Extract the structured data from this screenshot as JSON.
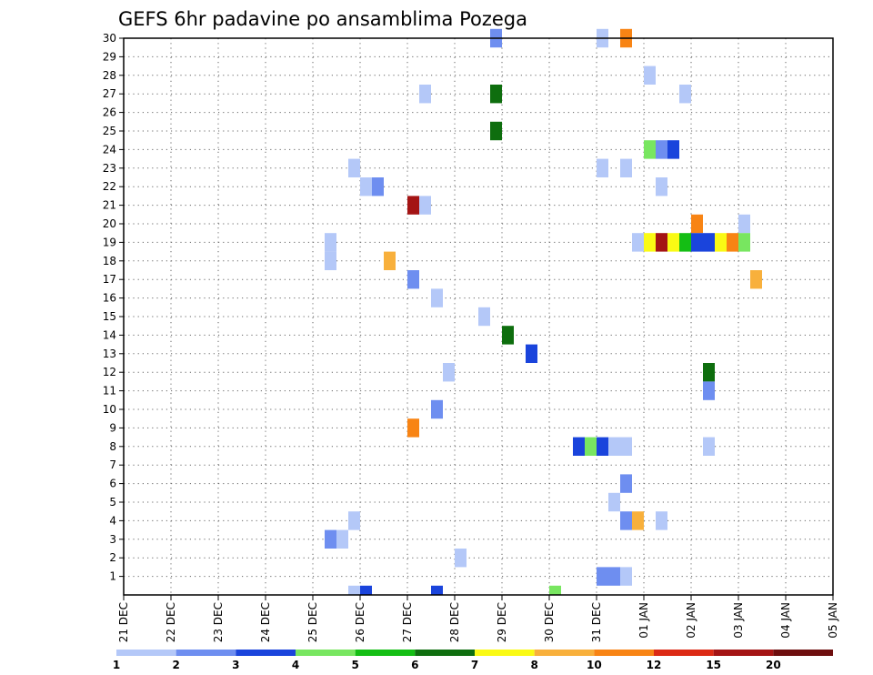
{
  "chart_data": {
    "type": "heatmap",
    "title": "GEFS 6hr padavine po ansamblima Pozega",
    "x_labels": [
      "21 DEC",
      "22 DEC",
      "23 DEC",
      "24 DEC",
      "25 DEC",
      "26 DEC",
      "27 DEC",
      "28 DEC",
      "29 DEC",
      "30 DEC",
      "31 DEC",
      "01 JAN",
      "02 JAN",
      "03 JAN",
      "04 JAN",
      "05 JAN"
    ],
    "y_labels": [
      "1",
      "2",
      "3",
      "4",
      "5",
      "6",
      "7",
      "8",
      "9",
      "10",
      "11",
      "12",
      "13",
      "14",
      "15",
      "16",
      "17",
      "18",
      "19",
      "20",
      "21",
      "22",
      "23",
      "24",
      "25",
      "26",
      "27",
      "28",
      "29",
      "30"
    ],
    "xlim": [
      0,
      60
    ],
    "ylim": [
      0,
      30
    ],
    "grid": true,
    "color_scale": {
      "labels": [
        "1",
        "2",
        "3",
        "4",
        "5",
        "6",
        "7",
        "8",
        "10",
        "12",
        "15",
        "20"
      ],
      "colors": [
        "#b4c8f8",
        "#6e8ef0",
        "#1a44dc",
        "#78e660",
        "#14be14",
        "#0e6e0e",
        "#fafa14",
        "#f8b03c",
        "#f88414",
        "#dc2a14",
        "#a41414",
        "#6e0e0e"
      ]
    },
    "cells": [
      {
        "x": 3.5,
        "y": 30,
        "v": 2
      },
      {
        "x": 8,
        "y": 30,
        "v": 1
      },
      {
        "x": 9,
        "y": 30,
        "v": 10
      },
      {
        "x": 10,
        "y": 28,
        "v": 1
      },
      {
        "x": 0.5,
        "y": 27,
        "v": 1
      },
      {
        "x": 3.5,
        "y": 27,
        "v": 6
      },
      {
        "x": 11.5,
        "y": 27,
        "v": 1
      },
      {
        "x": 3.5,
        "y": 25,
        "v": 6
      },
      {
        "x": 10,
        "y": 24,
        "v": 4
      },
      {
        "x": 10.5,
        "y": 24,
        "v": 2
      },
      {
        "x": 11,
        "y": 24,
        "v": 3
      },
      {
        "x": -2.5,
        "y": 23,
        "v": 1
      },
      {
        "x": 8,
        "y": 23,
        "v": 1
      },
      {
        "x": 9,
        "y": 23,
        "v": 1
      },
      {
        "x": -2,
        "y": 22,
        "v": 1
      },
      {
        "x": -1.5,
        "y": 22,
        "v": 2
      },
      {
        "x": 10.5,
        "y": 22,
        "v": 1
      },
      {
        "x": 0,
        "y": 21,
        "v": 15
      },
      {
        "x": 0.5,
        "y": 21,
        "v": 1
      },
      {
        "x": 12,
        "y": 20,
        "v": 10
      },
      {
        "x": 14,
        "y": 20,
        "v": 1
      },
      {
        "x": -3.5,
        "y": 19,
        "v": 1
      },
      {
        "x": 9.5,
        "y": 19,
        "v": 1
      },
      {
        "x": 10,
        "y": 19,
        "v": 7
      },
      {
        "x": 10.5,
        "y": 19,
        "v": 15
      },
      {
        "x": 11,
        "y": 19,
        "v": 7
      },
      {
        "x": 11.5,
        "y": 19,
        "v": 5
      },
      {
        "x": 12,
        "y": 19,
        "v": 3
      },
      {
        "x": 12.5,
        "y": 19,
        "v": 3
      },
      {
        "x": 13,
        "y": 19,
        "v": 7
      },
      {
        "x": 13.5,
        "y": 19,
        "v": 10
      },
      {
        "x": 14,
        "y": 19,
        "v": 4
      },
      {
        "x": -3.5,
        "y": 18,
        "v": 1
      },
      {
        "x": -1,
        "y": 18,
        "v": 8
      },
      {
        "x": 0,
        "y": 17,
        "v": 2
      },
      {
        "x": 14.5,
        "y": 17,
        "v": 8
      },
      {
        "x": 1,
        "y": 16,
        "v": 1
      },
      {
        "x": 3,
        "y": 15,
        "v": 1
      },
      {
        "x": 4,
        "y": 14,
        "v": 6
      },
      {
        "x": 5,
        "y": 13,
        "v": 3
      },
      {
        "x": 1.5,
        "y": 12,
        "v": 1
      },
      {
        "x": 12.5,
        "y": 12,
        "v": 6
      },
      {
        "x": 12.5,
        "y": 11,
        "v": 2
      },
      {
        "x": 1,
        "y": 10,
        "v": 2
      },
      {
        "x": 0,
        "y": 9,
        "v": 10
      },
      {
        "x": 7,
        "y": 8,
        "v": 3
      },
      {
        "x": 7.5,
        "y": 8,
        "v": 4
      },
      {
        "x": 8,
        "y": 8,
        "v": 3
      },
      {
        "x": 8.5,
        "y": 8,
        "v": 1
      },
      {
        "x": 9,
        "y": 8,
        "v": 1
      },
      {
        "x": 12.5,
        "y": 8,
        "v": 1
      },
      {
        "x": 9,
        "y": 6,
        "v": 2
      },
      {
        "x": 8.5,
        "y": 5,
        "v": 1
      },
      {
        "x": -2.5,
        "y": 4,
        "v": 1
      },
      {
        "x": 9,
        "y": 4,
        "v": 2
      },
      {
        "x": 9.5,
        "y": 4,
        "v": 8
      },
      {
        "x": 10.5,
        "y": 4,
        "v": 1
      },
      {
        "x": -3.5,
        "y": 3,
        "v": 2
      },
      {
        "x": -3,
        "y": 3,
        "v": 1
      },
      {
        "x": 2,
        "y": 2,
        "v": 1
      },
      {
        "x": 8,
        "y": 1,
        "v": 2
      },
      {
        "x": 8.5,
        "y": 1,
        "v": 2
      },
      {
        "x": 9,
        "y": 1,
        "v": 1
      },
      {
        "x": -2.5,
        "y": 0,
        "v": 1
      },
      {
        "x": -2,
        "y": 0,
        "v": 3
      },
      {
        "x": 1,
        "y": 0,
        "v": 3
      },
      {
        "x": 6,
        "y": 0,
        "v": 4
      }
    ]
  }
}
